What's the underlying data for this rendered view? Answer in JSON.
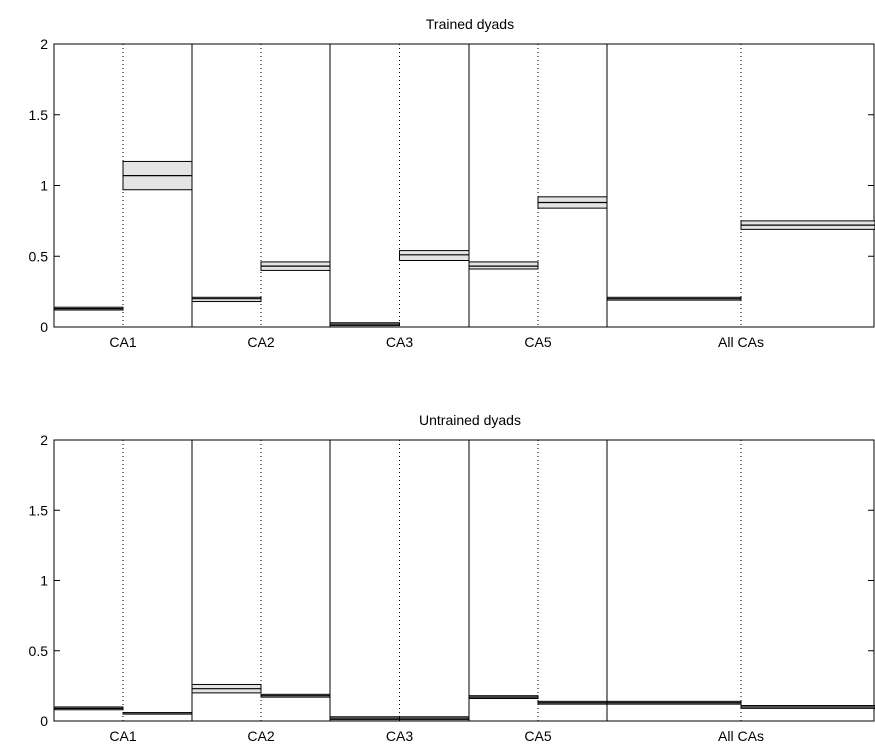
{
  "chart_data": [
    {
      "type": "bar",
      "title": "Trained dyads",
      "xlabel": "",
      "ylabel": "",
      "ylim": [
        0,
        2
      ],
      "yticks": [
        "0",
        "0.5",
        "1",
        "1.5",
        "2"
      ],
      "categories": [
        "CA1",
        "CA2",
        "CA3",
        "CA5",
        "All CAs"
      ],
      "grid": "dotted divider at each category center",
      "mark_style": "horizontal line with light grey band",
      "series": [
        {
          "values": [
            0.13,
            0.2,
            0.02,
            0.43,
            0.2
          ],
          "band_low": [
            0.12,
            0.18,
            0.01,
            0.41,
            0.19
          ],
          "band_high": [
            0.14,
            0.21,
            0.03,
            0.46,
            0.21
          ]
        },
        {
          "values": [
            1.07,
            0.43,
            0.51,
            0.88,
            0.72
          ],
          "band_low": [
            0.97,
            0.4,
            0.47,
            0.84,
            0.69
          ],
          "band_high": [
            1.17,
            0.46,
            0.54,
            0.92,
            0.75
          ]
        }
      ]
    },
    {
      "type": "bar",
      "title": "Untrained dyads",
      "xlabel": "",
      "ylabel": "",
      "ylim": [
        0,
        2
      ],
      "yticks": [
        "0",
        "0.5",
        "1",
        "1.5",
        "2"
      ],
      "categories": [
        "CA1",
        "CA2",
        "CA3",
        "CA5",
        "All CAs"
      ],
      "grid": "dotted divider at each category center",
      "mark_style": "horizontal line with light grey band",
      "series": [
        {
          "values": [
            0.09,
            0.23,
            0.02,
            0.17,
            0.13
          ],
          "band_low": [
            0.08,
            0.2,
            0.01,
            0.16,
            0.12
          ],
          "band_high": [
            0.1,
            0.26,
            0.03,
            0.18,
            0.14
          ]
        },
        {
          "values": [
            0.05,
            0.18,
            0.02,
            0.13,
            0.1
          ],
          "band_low": [
            0.05,
            0.17,
            0.01,
            0.12,
            0.09
          ],
          "band_high": [
            0.06,
            0.19,
            0.03,
            0.14,
            0.11
          ]
        }
      ]
    }
  ],
  "colors": {
    "band_fill": "#e4e4e4",
    "line": "#000000",
    "background": "#ffffff"
  }
}
